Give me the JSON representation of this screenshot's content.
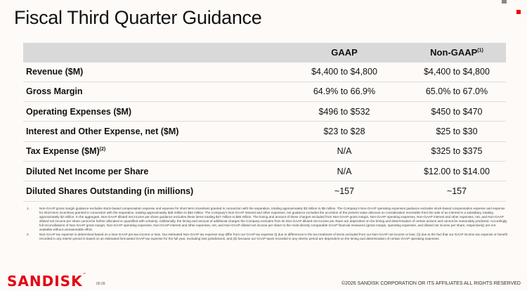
{
  "title": "Fiscal Third Quarter Guidance",
  "table": {
    "headers": [
      "",
      "GAAP",
      "Non-GAAP",
      "(1)"
    ],
    "rows": [
      {
        "label": "Revenue ($M)",
        "sup": "",
        "gaap": "$4,400 to $4,800",
        "nongaap": "$4,400 to $4,800"
      },
      {
        "label": "Gross Margin",
        "sup": "",
        "gaap": "64.9% to 66.9%",
        "nongaap": "65.0% to 67.0%"
      },
      {
        "label": "Operating Expenses ($M)",
        "sup": "",
        "gaap": "$496 to $532",
        "nongaap": "$450 to $470"
      },
      {
        "label": "Interest and Other Expense, net ($M)",
        "sup": "",
        "gaap": "$23 to $28",
        "nongaap": "$25 to $30"
      },
      {
        "label": "Tax Expense ($M)",
        "sup": "(2)",
        "gaap": "N/A",
        "nongaap": "$325 to $375"
      },
      {
        "label": "Diluted Net Income per Share",
        "sup": "",
        "gaap": "N/A",
        "nongaap": "$12.00 to $14.00"
      },
      {
        "label": "Diluted Shares Outstanding (in millions)",
        "sup": "",
        "gaap": "~157",
        "nongaap": "~157"
      }
    ]
  },
  "footnotes": [
    {
      "num": "1.",
      "text": "Non-GAAP gross margin guidance excludes stock-based compensation expense and expense for short-term incentives granted in connection with the separation, totaling approximately $3 million to $5 million. The Company's Non-GAAP operating expenses guidance excludes stock-based compensation expense and expense for short-term incentives granted in connection with the separation, totaling approximately $46 million to $62 million. The Company's Non-GAAP interest and other expenses, net guidance excludes the accretion of the present value discount on consideration receivable from the sale of an interest in a subsidiary, totaling approximately $2 million. In the aggregate, Non-GAAP diluted net income per share guidance excludes these items totaling $47 million to $65 million. The timing and amount of these charges excluded from Non-GAAP gross margin, Non-GAAP operating expenses, Non-GAAP interest and other expenses, net, and Non-GAAP diluted net income per share cannot be further allocated or quantified with certainty. Additionally, the timing and amount of additional charges the Company excludes from its Non-GAAP diluted net income per share are dependent on the timing and determination of certain actions and cannot be reasonably predicted. Accordingly, full reconciliations of Non-GAAP gross margin, Non-GAAP operating expenses, Non-GAAP interest and other expenses, net, and Non-GAAP diluted net income per share to the most directly comparable GAAP financial measures (gross margin, operating expenses, and diluted net income per share, respectively) are not available without unreasonable effort."
    },
    {
      "num": "2.",
      "text": "Non-GAAP tax expense is determined based on a Non-GAAP pre-tax income or loss. Our estimated Non-GAAP tax expense may differ from our GAAP tax expense (i) due to differences in the tax treatment of items excluded from our Non-GAAP net income or loss; (ii) due to the fact that our GAAP income tax expense or benefit recorded in any interim period is based on an estimated forecasted GAAP tax expense for the full year, excluding loss jurisdictions; and (iii) because our GAAP taxes recorded in any interim period are dependent on the timing and determination of certain GAAP operating expenses."
    }
  ],
  "footer": {
    "logo": "SANDISK",
    "tm": "™",
    "page": "00.09",
    "copyright": "©2026 SANDISK CORPORATION OR ITS AFFILIATES ALL RIGHTS RESERVED"
  },
  "colors": {
    "brand": "#e30613",
    "header_bg": "#d9d9d9"
  }
}
